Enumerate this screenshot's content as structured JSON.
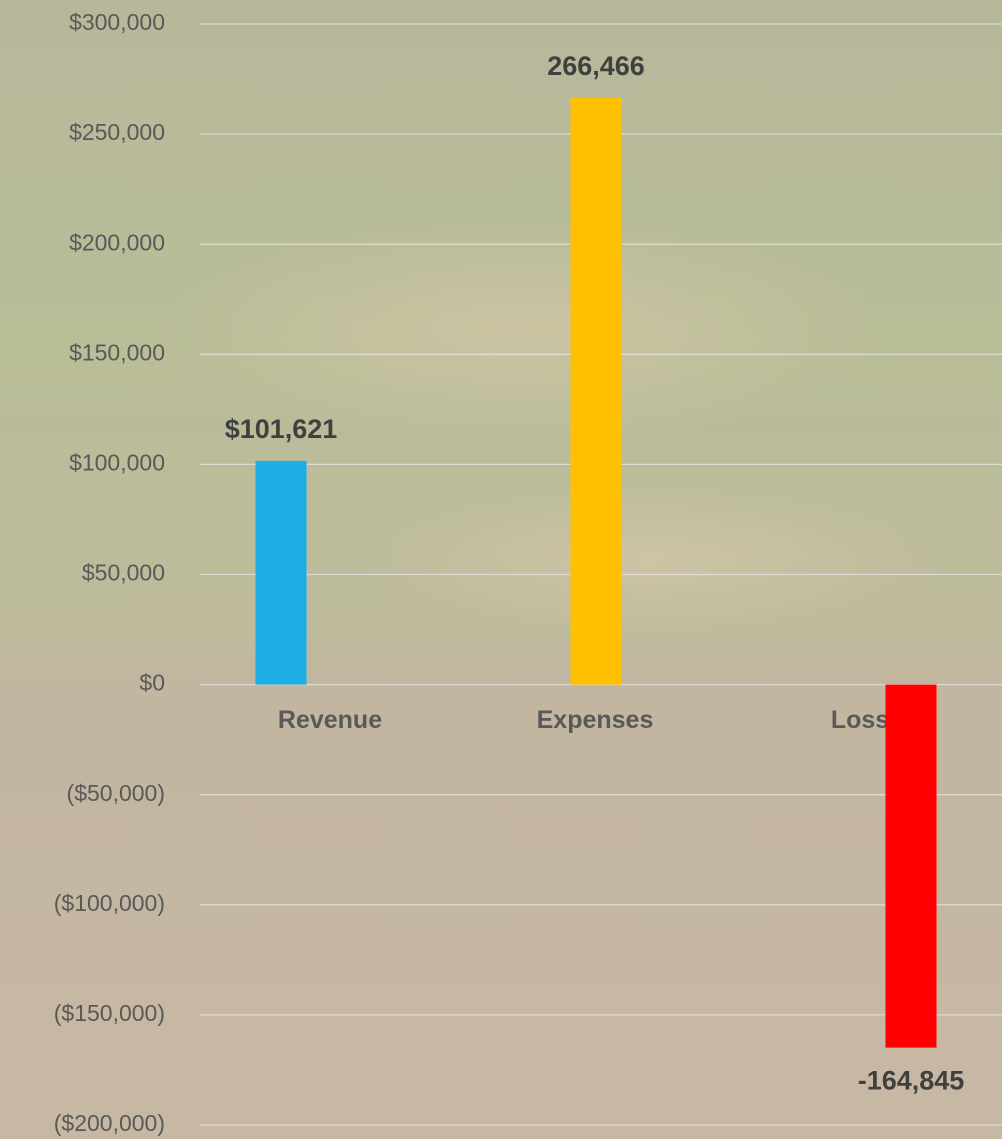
{
  "chart_data": {
    "type": "bar",
    "categories": [
      "Revenue",
      "Expenses",
      "Loss"
    ],
    "values": [
      101621,
      266466,
      -164845
    ],
    "value_labels": [
      "$101,621",
      "266,466",
      "-164,845"
    ],
    "colors": [
      "#1eaee6",
      "#ffc000",
      "#ff0000"
    ],
    "ylim": [
      -200000,
      300000
    ],
    "yticks": [
      {
        "value": 300000,
        "label": "$300,000"
      },
      {
        "value": 250000,
        "label": "$250,000"
      },
      {
        "value": 200000,
        "label": "$200,000"
      },
      {
        "value": 150000,
        "label": "$150,000"
      },
      {
        "value": 100000,
        "label": "$100,000"
      },
      {
        "value": 50000,
        "label": "$50,000"
      },
      {
        "value": 0,
        "label": "$0"
      },
      {
        "value": -50000,
        "label": "($50,000)"
      },
      {
        "value": -100000,
        "label": "($100,000)"
      },
      {
        "value": -150000,
        "label": "($150,000)"
      },
      {
        "value": -200000,
        "label": "($200,000)"
      }
    ],
    "negative_tick_color": "#ff0000",
    "grid": true
  }
}
